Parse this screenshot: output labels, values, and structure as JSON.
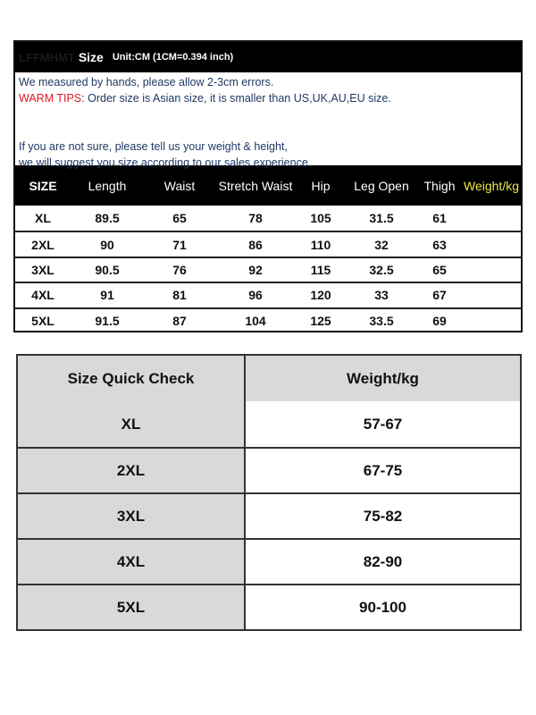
{
  "size_chart": {
    "brand": "LFFMHMT",
    "title": "Size",
    "unit": "Unit:CM (1CM=0.394 inch)",
    "note1": "We measured by hands, please allow 2-3cm errors.",
    "warm_label": "WARM TIPS",
    "warm_text": ": Order size is Asian size, it is smaller than US,UK,AU,EU size.",
    "note2": "If you are not sure, please tell us your weight & height,",
    "note3": " we will suggest you size according to our sales experience.",
    "headers": [
      "SIZE",
      "Length",
      "Waist",
      "Stretch Waist",
      "Hip",
      "Leg Open",
      "Thigh",
      "Weight/kg"
    ],
    "rows": [
      [
        "XL",
        "89.5",
        "65",
        "78",
        "105",
        "31.5",
        "61",
        ""
      ],
      [
        "2XL",
        "90",
        "71",
        "86",
        "110",
        "32",
        "63",
        ""
      ],
      [
        "3XL",
        "90.5",
        "76",
        "92",
        "115",
        "32.5",
        "65",
        ""
      ],
      [
        "4XL",
        "91",
        "81",
        "96",
        "120",
        "33",
        "67",
        ""
      ],
      [
        "5XL",
        "91.5",
        "87",
        "104",
        "125",
        "33.5",
        "69",
        ""
      ]
    ],
    "colors": {
      "header_bg": "#000000",
      "note_text": "#1f3864",
      "warm": "#e0161f",
      "weight_header": "#e8e84a"
    }
  },
  "quick_check": {
    "headers": [
      "Size Quick Check",
      "Weight/kg"
    ],
    "rows": [
      [
        "XL",
        "57-67"
      ],
      [
        "2XL",
        "67-75"
      ],
      [
        "3XL",
        "75-82"
      ],
      [
        "4XL",
        "82-90"
      ],
      [
        "5XL",
        "90-100"
      ]
    ],
    "colors": {
      "gray": "#d9d9d9"
    }
  }
}
